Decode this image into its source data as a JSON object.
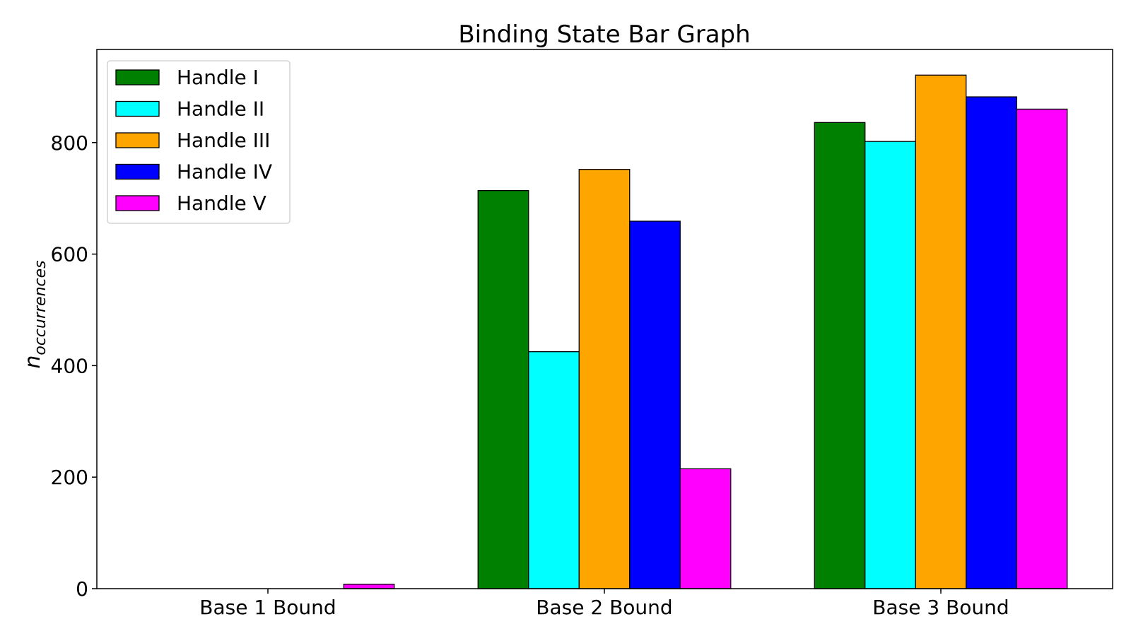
{
  "chart_data": {
    "type": "bar",
    "title": "Binding State Bar Graph",
    "xlabel": "",
    "ylabel": {
      "base": "n",
      "subscript": "occurrences"
    },
    "categories": [
      "Base 1 Bound",
      "Base 2 Bound",
      "Base 3 Bound"
    ],
    "series": [
      {
        "name": "Handle I",
        "color": "#008000",
        "values": [
          0,
          714,
          836
        ]
      },
      {
        "name": "Handle II",
        "color": "#00FFFF",
        "values": [
          0,
          425,
          802
        ]
      },
      {
        "name": "Handle III",
        "color": "#FFA500",
        "values": [
          0,
          752,
          921
        ]
      },
      {
        "name": "Handle IV",
        "color": "#0000FF",
        "values": [
          0,
          659,
          882
        ]
      },
      {
        "name": "Handle V",
        "color": "#FF00FF",
        "values": [
          8,
          215,
          860
        ]
      }
    ],
    "ylim": [
      0,
      967
    ],
    "yticks": [
      "0",
      "200",
      "400",
      "600",
      "800"
    ],
    "ytick_values": [
      0,
      200,
      400,
      600,
      800
    ],
    "legend_position": "upper-left",
    "grid": false
  }
}
